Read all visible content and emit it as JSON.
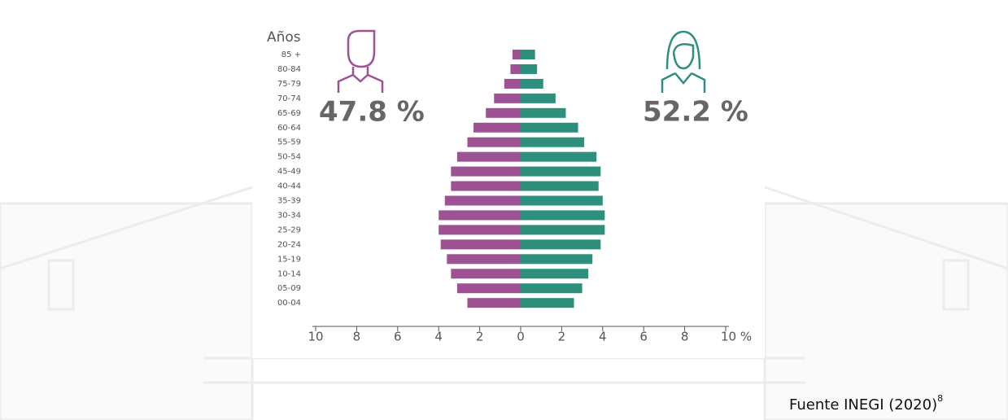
{
  "chart_data": {
    "type": "pyramid",
    "y_axis_label": "Años",
    "categories": [
      "85 +",
      "80-84",
      "75-79",
      "70-74",
      "65-69",
      "60-64",
      "55-59",
      "50-54",
      "45-49",
      "40-44",
      "35-39",
      "30-34",
      "25-29",
      "20-24",
      "15-19",
      "10-14",
      "05-09",
      "00-04"
    ],
    "series": [
      {
        "color": "#9e5293",
        "values": [
          -0.4,
          -0.5,
          -0.8,
          -1.3,
          -1.7,
          -2.3,
          -2.6,
          -3.1,
          -3.4,
          -3.4,
          -3.7,
          -4.0,
          -4.0,
          -3.9,
          -3.6,
          -3.4,
          -3.1,
          -2.6
        ]
      },
      {
        "color": "#2e8f7c",
        "values": [
          0.7,
          0.8,
          1.1,
          1.7,
          2.2,
          2.8,
          3.1,
          3.7,
          3.9,
          3.8,
          4.0,
          4.1,
          4.1,
          3.9,
          3.5,
          3.3,
          3.0,
          2.6
        ]
      }
    ],
    "xlim": [
      -10,
      10
    ],
    "xticks": [
      {
        "value": -10,
        "label": "10"
      },
      {
        "value": -8,
        "label": "8"
      },
      {
        "value": -6,
        "label": "6"
      },
      {
        "value": -4,
        "label": "4"
      },
      {
        "value": -2,
        "label": "2"
      },
      0,
      2,
      4,
      6,
      8,
      {
        "value": 10,
        "label": "10 %"
      }
    ],
    "annotations": [
      "47.8 %",
      "52.2 %"
    ],
    "source": "Fuente INEGI (2020)",
    "source_note": "8"
  }
}
